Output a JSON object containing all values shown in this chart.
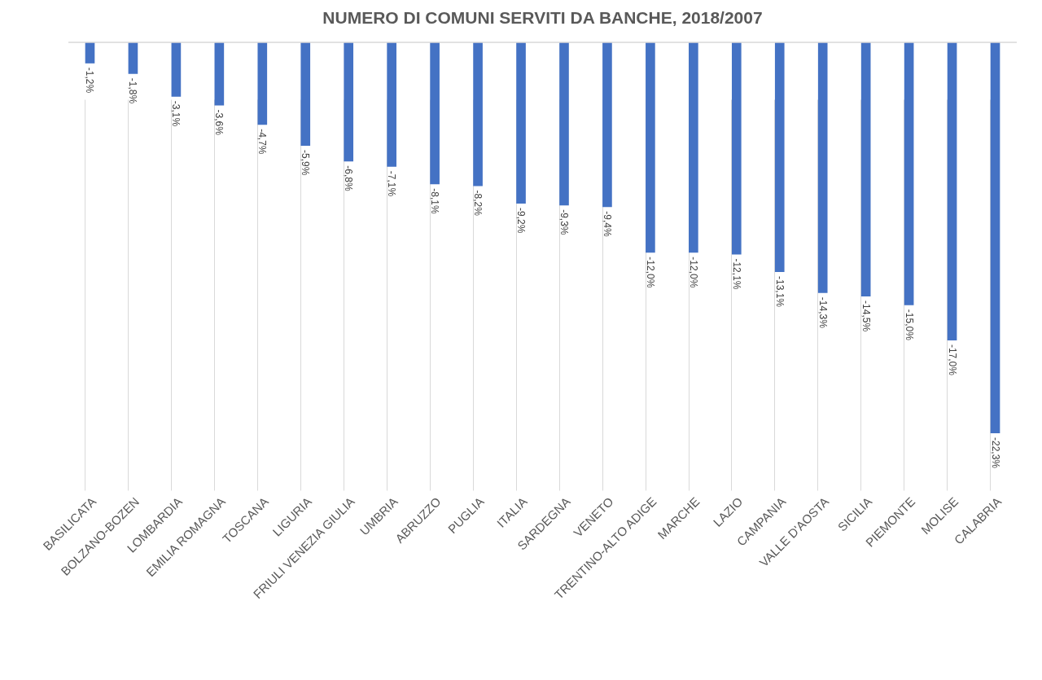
{
  "chart_data": {
    "type": "bar",
    "title": "NUMERO DI COMUNI SERVITI DA BANCHE, 2018/2007",
    "categories": [
      "BASILICATA",
      "BOLZANO-BOZEN",
      "LOMBARDIA",
      "EMILIA ROMAGNA",
      "TOSCANA",
      "LIGURIA",
      "FRIULI VENEZIA GIULIA",
      "UMBRIA",
      "ABRUZZO",
      "PUGLIA",
      "ITALIA",
      "SARDEGNA",
      "VENETO",
      "TRENTINO-ALTO ADIGE",
      "MARCHE",
      "LAZIO",
      "CAMPANIA",
      "VALLE D'AOSTA",
      "SICILIA",
      "PIEMONTE",
      "MOLISE",
      "CALABRIA"
    ],
    "values": [
      -1.2,
      -1.8,
      -3.1,
      -3.6,
      -4.7,
      -5.9,
      -6.8,
      -7.1,
      -8.1,
      -8.2,
      -9.2,
      -9.3,
      -9.4,
      -12.0,
      -12.0,
      -12.1,
      -13.1,
      -14.3,
      -14.5,
      -15.0,
      -17.0,
      -22.3
    ],
    "value_labels": [
      "-1,2%",
      "-1,8%",
      "-3,1%",
      "-3,6%",
      "-4,7%",
      "-5,9%",
      "-6,8%",
      "-7,1%",
      "-8,1%",
      "-8,2%",
      "-9,2%",
      "-9,3%",
      "-9,4%",
      "-12,0%",
      "-12,0%",
      "-12,1%",
      "-13,1%",
      "-14,3%",
      "-14,5%",
      "-15,0%",
      "-17,0%",
      "-22,3%"
    ],
    "color": "#4472c4",
    "grid": "x"
  }
}
